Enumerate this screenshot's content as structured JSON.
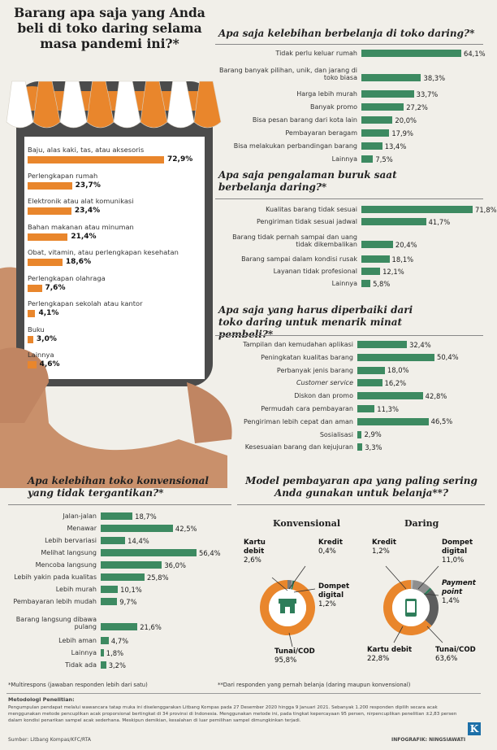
{
  "main_title": "Barang apa saja yang Anda beli di toko daring selama masa pandemi ini?*",
  "purchases": {
    "items": [
      {
        "label": "Baju, alas kaki, tas, atau aksesoris",
        "value": 72.9,
        "text": "72,9%"
      },
      {
        "label": "Perlengkapan rumah",
        "value": 23.7,
        "text": "23,7%"
      },
      {
        "label": "Elektronik atau alat komunikasi",
        "value": 23.4,
        "text": "23,4%"
      },
      {
        "label": "Bahan makanan atau minuman",
        "value": 21.4,
        "text": "21,4%"
      },
      {
        "label": "Obat, vitamin, atau perlengkapan kesehatan",
        "value": 18.6,
        "text": "18,6%"
      },
      {
        "label": "Perlengkapan olahraga",
        "value": 7.6,
        "text": "7,6%"
      },
      {
        "label": "Perlengkapan sekolah atau kantor",
        "value": 4.1,
        "text": "4,1%"
      },
      {
        "label": "Buku",
        "value": 3.0,
        "text": "3,0%"
      },
      {
        "label": "Lainnya",
        "value": 4.6,
        "text": "4,6%"
      }
    ]
  },
  "chart_data": [
    {
      "type": "bar",
      "title": "Barang apa saja yang Anda beli di toko daring selama masa pandemi ini?*",
      "categories": [
        "Baju, alas kaki, tas, atau aksesoris",
        "Perlengkapan rumah",
        "Elektronik atau alat komunikasi",
        "Bahan makanan atau minuman",
        "Obat, vitamin, atau perlengkapan kesehatan",
        "Perlengkapan olahraga",
        "Perlengkapan sekolah atau kantor",
        "Buku",
        "Lainnya"
      ],
      "values": [
        72.9,
        23.7,
        23.4,
        21.4,
        18.6,
        7.6,
        4.1,
        3.0,
        4.6
      ],
      "color": "#e9862c"
    },
    {
      "type": "bar",
      "title": "Apa saja kelebihan berbelanja di toko daring?*",
      "categories": [
        "Tidak perlu keluar rumah",
        "Barang banyak pilihan, unik, dan jarang di toko biasa",
        "Harga lebih murah",
        "Banyak promo",
        "Bisa pesan barang dari kota lain",
        "Pembayaran beragam",
        "Bisa melakukan perbandingan barang",
        "Lainnya"
      ],
      "values": [
        64.1,
        38.3,
        33.7,
        27.2,
        20.0,
        17.9,
        13.4,
        7.5
      ],
      "texts": [
        "64,1%",
        "38,3%",
        "33,7%",
        "27,2%",
        "20,0%",
        "17,9%",
        "13,4%",
        "7,5%"
      ],
      "color": "#3d8a61"
    },
    {
      "type": "bar",
      "title": "Apa saja pengalaman buruk saat berbelanja daring?*",
      "categories": [
        "Kualitas barang tidak sesuai",
        "Pengiriman tidak sesuai jadwal",
        "Barang tidak pernah sampai dan uang tidak dikembalikan",
        "Barang sampai dalam kondisi rusak",
        "Layanan tidak profesional",
        "Lainnya"
      ],
      "values": [
        71.8,
        41.7,
        20.4,
        18.1,
        12.1,
        5.8
      ],
      "texts": [
        "71,8%",
        "41,7%",
        "20,4%",
        "18,1%",
        "12,1%",
        "5,8%"
      ],
      "color": "#3d8a61"
    },
    {
      "type": "bar",
      "title": "Apa saja yang harus diperbaiki dari toko daring untuk menarik minat pembeli?*",
      "categories": [
        "Tampilan dan kemudahan aplikasi",
        "Peningkatan kualitas barang",
        "Perbanyak jenis barang",
        "Customer service",
        "Diskon dan promo",
        "Permudah cara pembayaran",
        "Pengiriman lebih cepat dan aman",
        "Sosialisasi",
        "Kesesuaian barang dan kejujuran"
      ],
      "values": [
        32.4,
        50.4,
        18.0,
        16.2,
        42.8,
        11.3,
        46.5,
        2.9,
        3.3
      ],
      "texts": [
        "32,4%",
        "50,4%",
        "18,0%",
        "16,2%",
        "42,8%",
        "11,3%",
        "46,5%",
        "2,9%",
        "3,3%"
      ],
      "color": "#3d8a61"
    },
    {
      "type": "bar",
      "title": "Apa kelebihan toko konvensional yang tidak tergantikan?*",
      "categories": [
        "Jalan-jalan",
        "Menawar",
        "Lebih bervariasi",
        "Melihat langsung",
        "Mencoba langsung",
        "Lebih yakin pada kualitas",
        "Lebih murah",
        "Pembayaran lebih mudah",
        "Barang langsung dibawa pulang",
        "Lebih aman",
        "Lainnya",
        "Tidak ada"
      ],
      "values": [
        18.7,
        42.5,
        14.4,
        56.4,
        36.0,
        25.8,
        10.1,
        9.7,
        21.6,
        4.7,
        1.8,
        3.2
      ],
      "texts": [
        "18,7%",
        "42,5%",
        "14,4%",
        "56,4%",
        "36,0%",
        "25,8%",
        "10,1%",
        "9,7%",
        "21,6%",
        "4,7%",
        "1,8%",
        "3,2%"
      ],
      "color": "#3d8a61"
    },
    {
      "type": "pie",
      "title": "Konvensional",
      "categories": [
        "Kartu debit",
        "Kredit",
        "Dompet digital",
        "Tunai/COD"
      ],
      "values": [
        2.6,
        0.4,
        1.2,
        95.8
      ],
      "colors": [
        "#7a7a7a",
        "#b7b7b7",
        "#2e7d5a",
        "#e9862c"
      ]
    },
    {
      "type": "pie",
      "title": "Daring",
      "categories": [
        "Kredit",
        "Dompet digital",
        "Payment point",
        "Kartu debit",
        "Tunai/COD"
      ],
      "values": [
        1.2,
        11.0,
        1.4,
        22.8,
        63.6
      ],
      "colors": [
        "#b7b7b7",
        "#8e8e8e",
        "#2e7d5a",
        "#5d5d5d",
        "#e9862c"
      ]
    }
  ],
  "payment": {
    "title": "Model pembayaran apa yang paling sering Anda gunakan untuk belanja**?",
    "konvensional": {
      "heading": "Konvensional",
      "labels": [
        {
          "name": "Kartu debit",
          "value": "2,6%"
        },
        {
          "name": "Kredit",
          "value": "0,4%"
        },
        {
          "name": "Dompet digital",
          "value": "1,2%"
        },
        {
          "name": "Tunai/COD",
          "value": "95,8%"
        }
      ]
    },
    "daring": {
      "heading": "Daring",
      "labels": [
        {
          "name": "Kredit",
          "value": "1,2%"
        },
        {
          "name": "Dompet digital",
          "value": "11,0%"
        },
        {
          "name": "Payment point",
          "value": "1,4%"
        },
        {
          "name": "Kartu debit",
          "value": "22,8%"
        },
        {
          "name": "Tunai/COD",
          "value": "63,6%"
        }
      ]
    }
  },
  "footnotes": {
    "multi": "*Multirespons (jawaban responden lebih dari satu)",
    "resp": "**Dari responden yang pernah belanja (daring maupun konvensional)"
  },
  "method": {
    "title": "Metodologi Penelitian:",
    "body": "Pengumpulan pendapat melalui wawancara tatap muka ini diselenggarakan Litbang Kompas pada 27 Desember 2020 hingga 9 Januari 2021. Sebanyak 1.200 responden dipilih secara acak menggunakan metode pencuplikan acak proporsional bertingkat di 34 provinsi di Indonesia. Menggunakan metode ini, pada tingkat kepercayaan 95 persen, nirpencuplikan penelitian ±2,83 persen dalam kondisi penarikan sampel acak sederhana. Meskipun demikian, kesalahan di luar pemilihan sampel dimungkinkan terjadi."
  },
  "credits": {
    "source": "Sumber: Litbang Kompas/KFC/RTA",
    "graphic": "INFOGRAFIK: NINGSIAWATI",
    "logo": "K"
  },
  "colors": {
    "orange": "#e9862c",
    "green": "#3d8a61",
    "dark_green": "#2e7d5a",
    "grey": "#7a7a7a",
    "background": "#f1efe9"
  }
}
